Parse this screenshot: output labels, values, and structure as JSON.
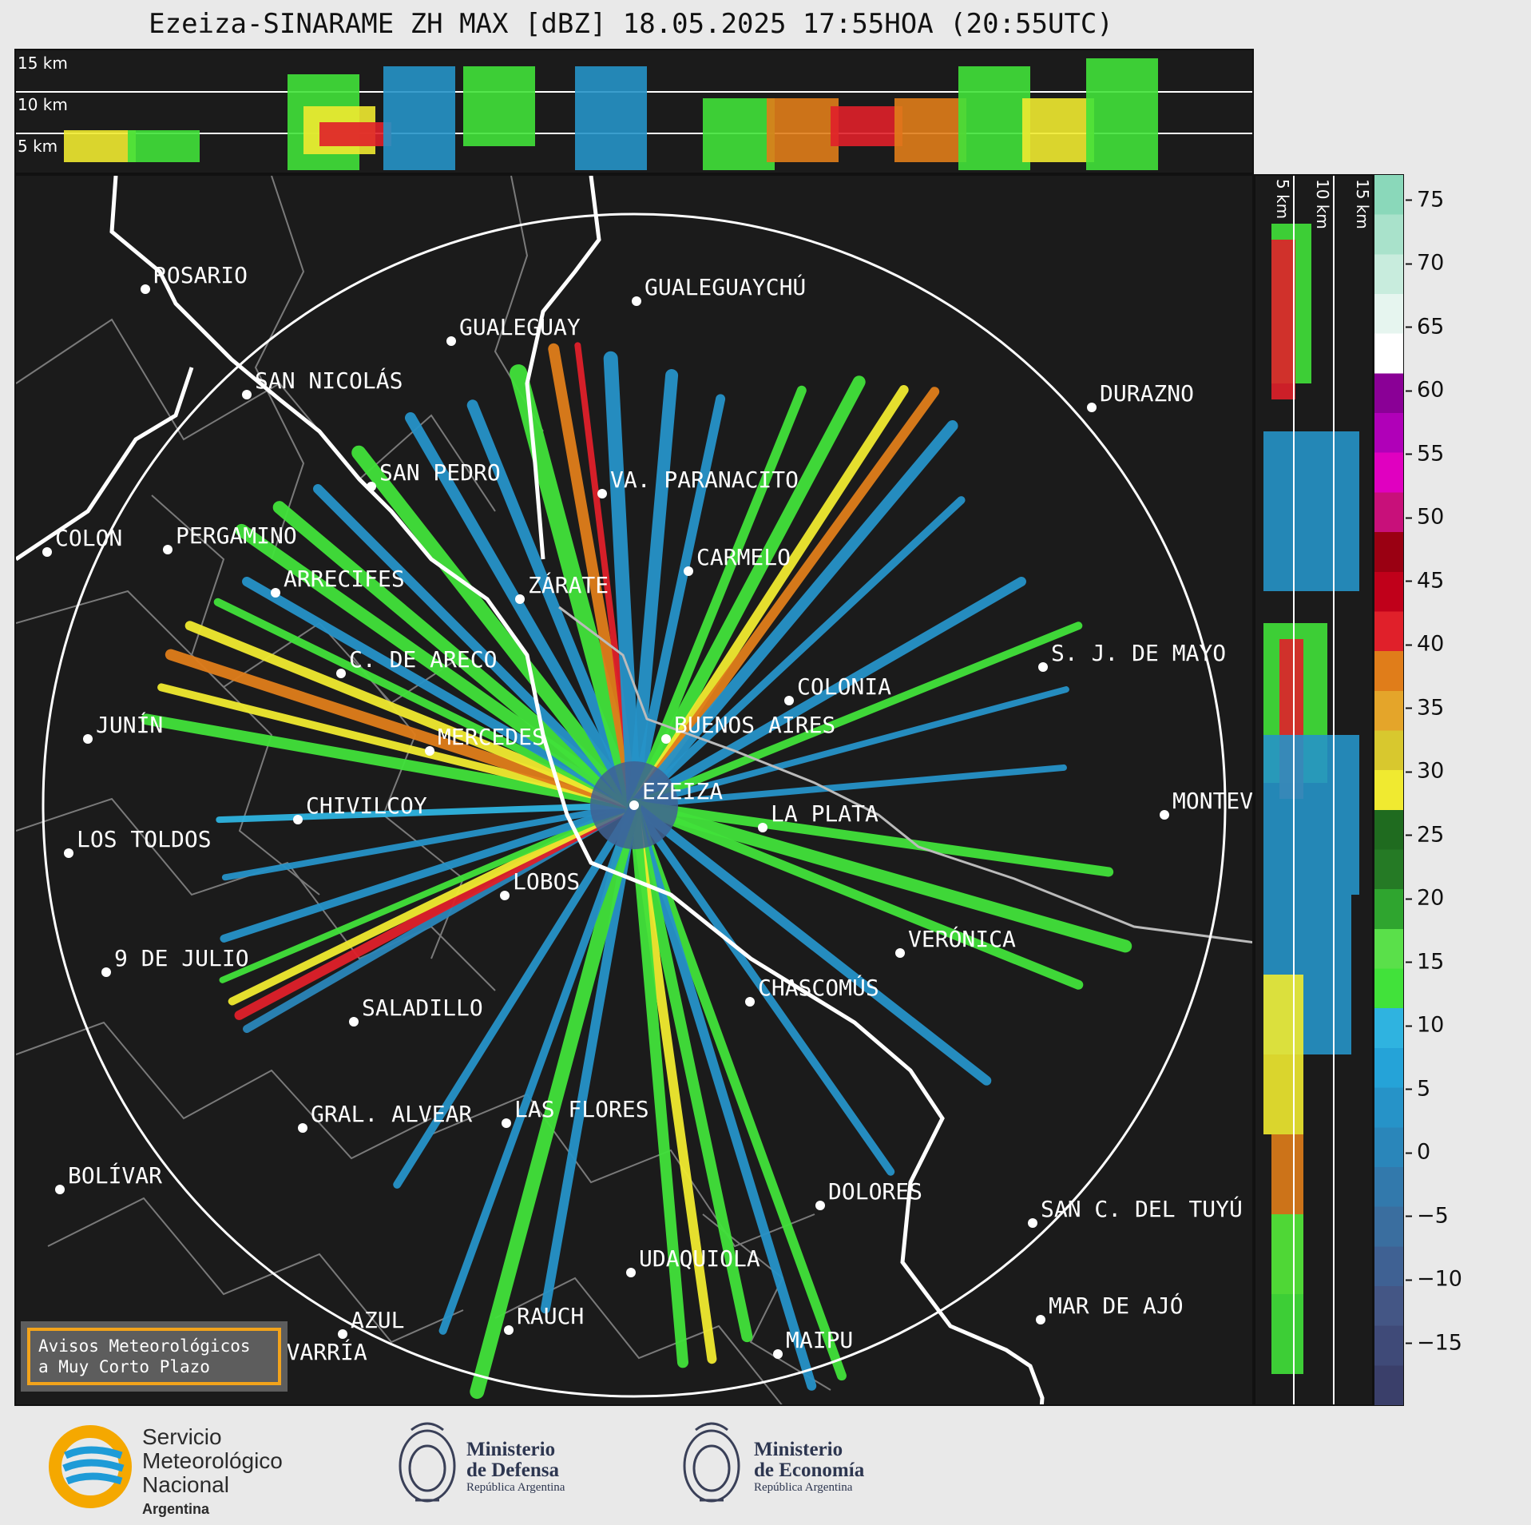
{
  "title": "Ezeiza-SINARAME ZH MAX [dBZ] 18.05.2025 17:55HOA (20:55UTC)",
  "top_panel": {
    "altitude_labels": [
      "15 km",
      "10 km",
      "5 km"
    ]
  },
  "side_panel": {
    "altitude_labels": [
      "5 km",
      "10 km",
      "15 km"
    ]
  },
  "colorbar": {
    "unit": "dBZ",
    "ticks": [
      "75",
      "70",
      "65",
      "60",
      "55",
      "50",
      "45",
      "40",
      "35",
      "30",
      "25",
      "20",
      "15",
      "10",
      "5",
      "0",
      "−5",
      "−10",
      "−15"
    ],
    "range": [
      -20,
      77
    ],
    "colors": [
      "#3a3f6a",
      "#3f4a78",
      "#445685",
      "#3f6193",
      "#3a6e9f",
      "#3279ac",
      "#2a86ba",
      "#2693c8",
      "#25a3d8",
      "#2fb3e0",
      "#41e23a",
      "#5ae04a",
      "#2fa52f",
      "#257a25",
      "#1f6b1f",
      "#f0ea30",
      "#d8c82e",
      "#e4a52a",
      "#e07d1a",
      "#e0202a",
      "#c0001a",
      "#9a0012",
      "#c8107a",
      "#e000c0",
      "#b000b8",
      "#8a0096",
      "#ffffff",
      "#e6f5ef",
      "#c8ecdd",
      "#a9e2cb",
      "#8ad8ba"
    ]
  },
  "map": {
    "cities": [
      {
        "name": "ROSARIO",
        "dot": [
          180,
          360
        ]
      },
      {
        "name": "GUALEGUAYCHÚ",
        "dot": [
          795,
          375
        ]
      },
      {
        "name": "GUALEGUAY",
        "dot": [
          563,
          425
        ]
      },
      {
        "name": "SAN NICOLÁS",
        "dot": [
          307,
          492
        ]
      },
      {
        "name": "DURAZNO",
        "dot": [
          1365,
          508
        ]
      },
      {
        "name": "SAN PEDRO",
        "dot": [
          463,
          607
        ]
      },
      {
        "name": "VA. PARANACITO",
        "dot": [
          752,
          616
        ]
      },
      {
        "name": "COLON",
        "dot": [
          57,
          689
        ]
      },
      {
        "name": "PERGAMINO",
        "dot": [
          208,
          686
        ]
      },
      {
        "name": "ARRECIFES",
        "dot": [
          343,
          740
        ]
      },
      {
        "name": "ZÁRATE",
        "dot": [
          649,
          748
        ]
      },
      {
        "name": "CARMELO",
        "dot": [
          860,
          713
        ]
      },
      {
        "name": "C. DE ARECO",
        "dot": [
          425,
          841
        ]
      },
      {
        "name": "S. J. DE MAYO",
        "dot": [
          1304,
          833
        ]
      },
      {
        "name": "COLONIA",
        "dot": [
          986,
          875
        ]
      },
      {
        "name": "JUNÍN",
        "dot": [
          108,
          923
        ]
      },
      {
        "name": "BUENOS AIRES",
        "dot": [
          832,
          923
        ]
      },
      {
        "name": "MERCEDES",
        "dot": [
          536,
          938
        ]
      },
      {
        "name": "EZEIZA",
        "dot": [
          792,
          1006
        ]
      },
      {
        "name": "MONTEVIDEO",
        "dot": [
          1456,
          1018
        ]
      },
      {
        "name": "CHIVILCOY",
        "dot": [
          371,
          1024
        ]
      },
      {
        "name": "LA PLATA",
        "dot": [
          953,
          1034
        ]
      },
      {
        "name": "LOS TOLDOS",
        "dot": [
          84,
          1066
        ]
      },
      {
        "name": "LOBOS",
        "dot": [
          630,
          1119
        ]
      },
      {
        "name": "VERÓNICA",
        "dot": [
          1125,
          1191
        ]
      },
      {
        "name": "9 DE JULIO",
        "dot": [
          131,
          1215
        ]
      },
      {
        "name": "CHASCOMÚS",
        "dot": [
          937,
          1252
        ]
      },
      {
        "name": "SALADILLO",
        "dot": [
          441,
          1277
        ]
      },
      {
        "name": "GRAL. ALVEAR",
        "dot": [
          377,
          1410
        ]
      },
      {
        "name": "LAS FLORES",
        "dot": [
          632,
          1404
        ]
      },
      {
        "name": "BOLÍVAR",
        "dot": [
          73,
          1487
        ]
      },
      {
        "name": "DOLORES",
        "dot": [
          1025,
          1507
        ]
      },
      {
        "name": "SAN C. DEL TUYÚ",
        "dot": [
          1291,
          1529
        ]
      },
      {
        "name": "UDAQUIOLA",
        "dot": [
          788,
          1591
        ]
      },
      {
        "name": "MAR DE AJÓ",
        "dot": [
          1301,
          1650
        ]
      },
      {
        "name": "AZUL",
        "dot": [
          427,
          1668
        ]
      },
      {
        "name": "RAUCH",
        "dot": [
          635,
          1663
        ]
      },
      {
        "name": "OLAVARRÍA",
        "dot": [
          296,
          1708
        ]
      },
      {
        "name": "MAIPU",
        "dot": [
          972,
          1693
        ]
      }
    ]
  },
  "warning_box": {
    "line1": "Avisos Meteorológicos",
    "line2": "a Muy Corto Plazo"
  },
  "logos": {
    "smn": {
      "line1": "Servicio",
      "line2": "Meteorológico",
      "line3": "Nacional",
      "country": "Argentina"
    },
    "defensa": {
      "line1": "Ministerio",
      "line2": "de Defensa",
      "country": "República Argentina"
    },
    "economia": {
      "line1": "Ministerio",
      "line2": "de Economía",
      "country": "República Argentina"
    }
  }
}
